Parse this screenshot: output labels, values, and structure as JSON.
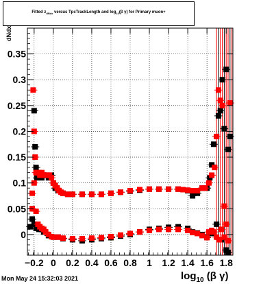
{
  "title": {
    "prefix": "Fitted  z",
    "z_subscript": "dNdx",
    "middle": "  versus TpcTrackLength and log",
    "log_subscript": "10",
    "suffix": "(β γ) for Primary muon+"
  },
  "ylabel": "dNdx",
  "xlabel": {
    "main": "log",
    "subscript": "10",
    "suffix": "(β γ)"
  },
  "datestamp": "Mon May 24 15:32:03 2021",
  "colors": {
    "black_series": "#000000",
    "red_series": "#ff0000"
  },
  "chart_data": {
    "type": "scatter",
    "xlim": [
      -0.27,
      1.87
    ],
    "ylim": [
      -0.04,
      0.4
    ],
    "grid": true,
    "x_ticks": [
      {
        "value": -0.2,
        "label": "−0.2"
      },
      {
        "value": 0,
        "label": "0"
      },
      {
        "value": 0.2,
        "label": "0.2"
      },
      {
        "value": 0.4,
        "label": "0.4"
      },
      {
        "value": 0.6,
        "label": "0.6"
      },
      {
        "value": 0.8,
        "label": "0.8"
      },
      {
        "value": 1.0,
        "label": "1"
      },
      {
        "value": 1.2,
        "label": "1.2"
      },
      {
        "value": 1.4,
        "label": "1.4"
      },
      {
        "value": 1.6,
        "label": "1.6"
      },
      {
        "value": 1.8,
        "label": "1.8"
      }
    ],
    "y_ticks": [
      {
        "value": 0,
        "label": "0"
      },
      {
        "value": 0.05,
        "label": "0.05"
      },
      {
        "value": 0.1,
        "label": "0.1"
      },
      {
        "value": 0.15,
        "label": "0.15"
      },
      {
        "value": 0.2,
        "label": "0.2"
      },
      {
        "value": 0.25,
        "label": "0.25"
      },
      {
        "value": 0.3,
        "label": "0.3"
      },
      {
        "value": 0.35,
        "label": "0.35"
      }
    ],
    "series": [
      {
        "color": "#000000",
        "upper": {
          "x": [
            -0.22,
            -0.2,
            -0.19,
            -0.18,
            -0.17,
            -0.15,
            -0.12,
            -0.1,
            -0.08,
            -0.05,
            -0.02,
            0.0,
            0.02,
            0.05,
            0.1,
            0.15,
            0.2,
            0.3,
            0.4,
            0.5,
            0.6,
            0.7,
            0.8,
            0.9,
            1.0,
            1.1,
            1.2,
            1.3,
            1.4,
            1.45,
            1.5,
            1.55,
            1.6,
            1.63,
            1.65,
            1.67,
            1.7,
            1.72,
            1.74,
            1.76,
            1.78,
            1.8,
            1.82,
            1.84
          ],
          "y": [
            0.05,
            0.24,
            0.17,
            0.13,
            0.11,
            0.12,
            0.11,
            0.115,
            0.115,
            0.11,
            0.115,
            0.1,
            0.09,
            0.085,
            0.08,
            0.078,
            0.078,
            0.078,
            0.078,
            0.078,
            0.08,
            0.082,
            0.084,
            0.086,
            0.088,
            0.088,
            0.088,
            0.088,
            0.085,
            0.075,
            0.08,
            0.09,
            0.09,
            0.11,
            0.135,
            0.175,
            0.19,
            0.23,
            0.24,
            0.3,
            0.205,
            0.32,
            0.165,
            0.19
          ]
        },
        "lower": {
          "x": [
            -0.24,
            -0.22,
            -0.2,
            -0.18,
            -0.15,
            -0.12,
            -0.1,
            -0.05,
            0.0,
            0.05,
            0.1,
            0.2,
            0.3,
            0.4,
            0.5,
            0.6,
            0.7,
            0.8,
            0.9,
            1.0,
            1.1,
            1.2,
            1.3,
            1.4,
            1.45,
            1.5,
            1.55,
            1.6,
            1.65,
            1.7,
            1.75,
            1.8,
            1.82
          ],
          "y": [
            0.015,
            0.03,
            0.02,
            0.012,
            0.01,
            0.01,
            0.005,
            -0.002,
            -0.005,
            -0.005,
            -0.008,
            -0.01,
            -0.012,
            -0.01,
            -0.008,
            -0.006,
            -0.003,
            0.0,
            0.005,
            0.01,
            0.012,
            0.014,
            0.015,
            0.012,
            0.005,
            0.003,
            0.0,
            -0.005,
            0.002,
            0.02,
            -0.01,
            -0.03,
            -0.035
          ]
        }
      },
      {
        "color": "#ff0000",
        "upper": {
          "x": [
            -0.22,
            -0.21,
            -0.2,
            -0.19,
            -0.18,
            -0.17,
            -0.16,
            -0.14,
            -0.12,
            -0.1,
            -0.08,
            -0.06,
            -0.04,
            -0.02,
            0.0,
            0.02,
            0.04,
            0.06,
            0.08,
            0.1,
            0.15,
            0.2,
            0.3,
            0.4,
            0.5,
            0.6,
            0.7,
            0.8,
            0.9,
            1.0,
            1.1,
            1.2,
            1.3,
            1.35,
            1.4,
            1.45,
            1.5,
            1.55,
            1.58,
            1.62,
            1.65,
            1.68,
            1.7,
            1.72,
            1.74,
            1.76,
            1.78,
            1.8,
            1.84
          ],
          "y": [
            0.08,
            0.28,
            0.2,
            0.15,
            0.12,
            0.12,
            0.12,
            0.115,
            0.12,
            0.115,
            0.115,
            0.115,
            0.115,
            0.11,
            0.1,
            0.095,
            0.09,
            0.085,
            0.082,
            0.08,
            0.078,
            0.078,
            0.078,
            0.078,
            0.078,
            0.08,
            0.082,
            0.085,
            0.087,
            0.088,
            0.088,
            0.088,
            0.088,
            0.087,
            0.086,
            0.085,
            0.085,
            0.09,
            0.09,
            0.1,
            0.115,
            0.13,
            0.19,
            0.28,
            0.26,
            0.25,
            0.055,
            0.02,
            0.255
          ]
        },
        "lower": {
          "x": [
            -0.22,
            -0.2,
            -0.18,
            -0.16,
            -0.14,
            -0.12,
            -0.1,
            -0.08,
            -0.05,
            -0.02,
            0.0,
            0.05,
            0.1,
            0.2,
            0.3,
            0.4,
            0.5,
            0.6,
            0.7,
            0.8,
            0.9,
            1.0,
            1.1,
            1.2,
            1.3,
            1.4,
            1.45,
            1.5,
            1.55,
            1.6,
            1.62,
            1.65,
            1.67,
            1.7,
            1.73,
            1.75,
            1.78,
            1.82
          ],
          "y": [
            0.05,
            0.1,
            0.045,
            0.02,
            0.015,
            0.012,
            0.01,
            0.005,
            0.0,
            -0.004,
            -0.005,
            -0.005,
            -0.007,
            -0.008,
            -0.008,
            -0.007,
            -0.006,
            -0.004,
            -0.001,
            0.002,
            0.005,
            0.008,
            0.01,
            0.01,
            0.01,
            0.008,
            0.004,
            0.002,
            -0.002,
            -0.006,
            0.005,
            0.008,
            0.005,
            -0.005,
            -0.01,
            0.01,
            -0.005,
            -0.012
          ]
        }
      }
    ]
  }
}
